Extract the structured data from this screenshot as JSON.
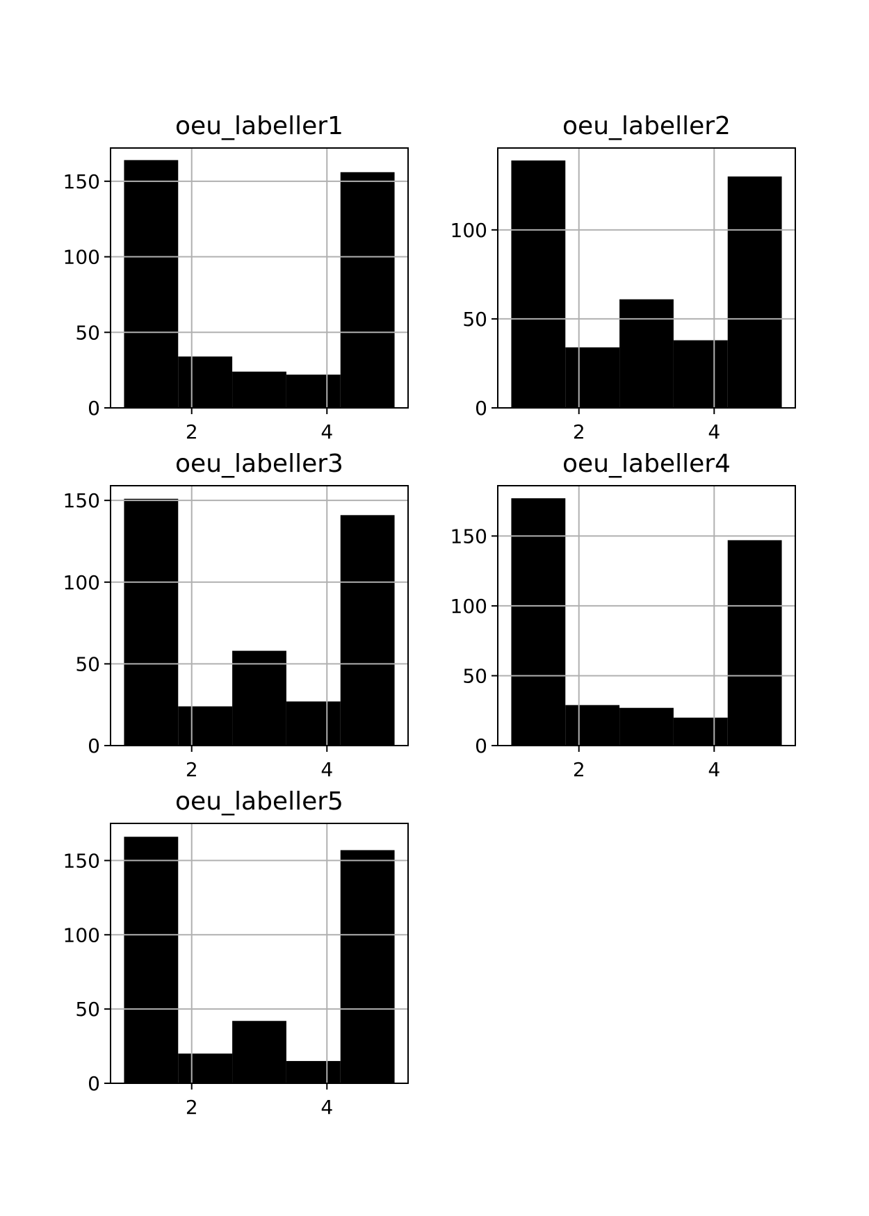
{
  "colors": {
    "bar": "#000000",
    "grid": "#b0b0b0",
    "axis": "#000000",
    "background": "#ffffff"
  },
  "chart_data": [
    {
      "type": "bar",
      "title": "oeu_labeller1",
      "bin_edges": [
        1.0,
        1.8,
        2.6,
        3.4,
        4.2,
        5.0
      ],
      "values": [
        164,
        34,
        24,
        22,
        156
      ],
      "xlim": [
        0.8,
        5.2
      ],
      "ylim": [
        0,
        172
      ],
      "xticks": [
        2,
        4
      ],
      "yticks": [
        0,
        50,
        100,
        150
      ],
      "xlabel": "",
      "ylabel": "",
      "grid": true
    },
    {
      "type": "bar",
      "title": "oeu_labeller2",
      "bin_edges": [
        1.0,
        1.8,
        2.6,
        3.4,
        4.2,
        5.0
      ],
      "values": [
        139,
        34,
        61,
        38,
        130
      ],
      "xlim": [
        0.8,
        5.2
      ],
      "ylim": [
        0,
        146
      ],
      "xticks": [
        2,
        4
      ],
      "yticks": [
        0,
        50,
        100
      ],
      "xlabel": "",
      "ylabel": "",
      "grid": true
    },
    {
      "type": "bar",
      "title": "oeu_labeller3",
      "bin_edges": [
        1.0,
        1.8,
        2.6,
        3.4,
        4.2,
        5.0
      ],
      "values": [
        151,
        24,
        58,
        27,
        141
      ],
      "xlim": [
        0.8,
        5.2
      ],
      "ylim": [
        0,
        159
      ],
      "xticks": [
        2,
        4
      ],
      "yticks": [
        0,
        50,
        100,
        150
      ],
      "xlabel": "",
      "ylabel": "",
      "grid": true
    },
    {
      "type": "bar",
      "title": "oeu_labeller4",
      "bin_edges": [
        1.0,
        1.8,
        2.6,
        3.4,
        4.2,
        5.0
      ],
      "values": [
        177,
        29,
        27,
        20,
        147
      ],
      "xlim": [
        0.8,
        5.2
      ],
      "ylim": [
        0,
        186
      ],
      "xticks": [
        2,
        4
      ],
      "yticks": [
        0,
        50,
        100,
        150
      ],
      "xlabel": "",
      "ylabel": "",
      "grid": true
    },
    {
      "type": "bar",
      "title": "oeu_labeller5",
      "bin_edges": [
        1.0,
        1.8,
        2.6,
        3.4,
        4.2,
        5.0
      ],
      "values": [
        166,
        20,
        42,
        15,
        157
      ],
      "xlim": [
        0.8,
        5.2
      ],
      "ylim": [
        0,
        175
      ],
      "xticks": [
        2,
        4
      ],
      "yticks": [
        0,
        50,
        100,
        150
      ],
      "xlabel": "",
      "ylabel": "",
      "grid": true
    }
  ]
}
